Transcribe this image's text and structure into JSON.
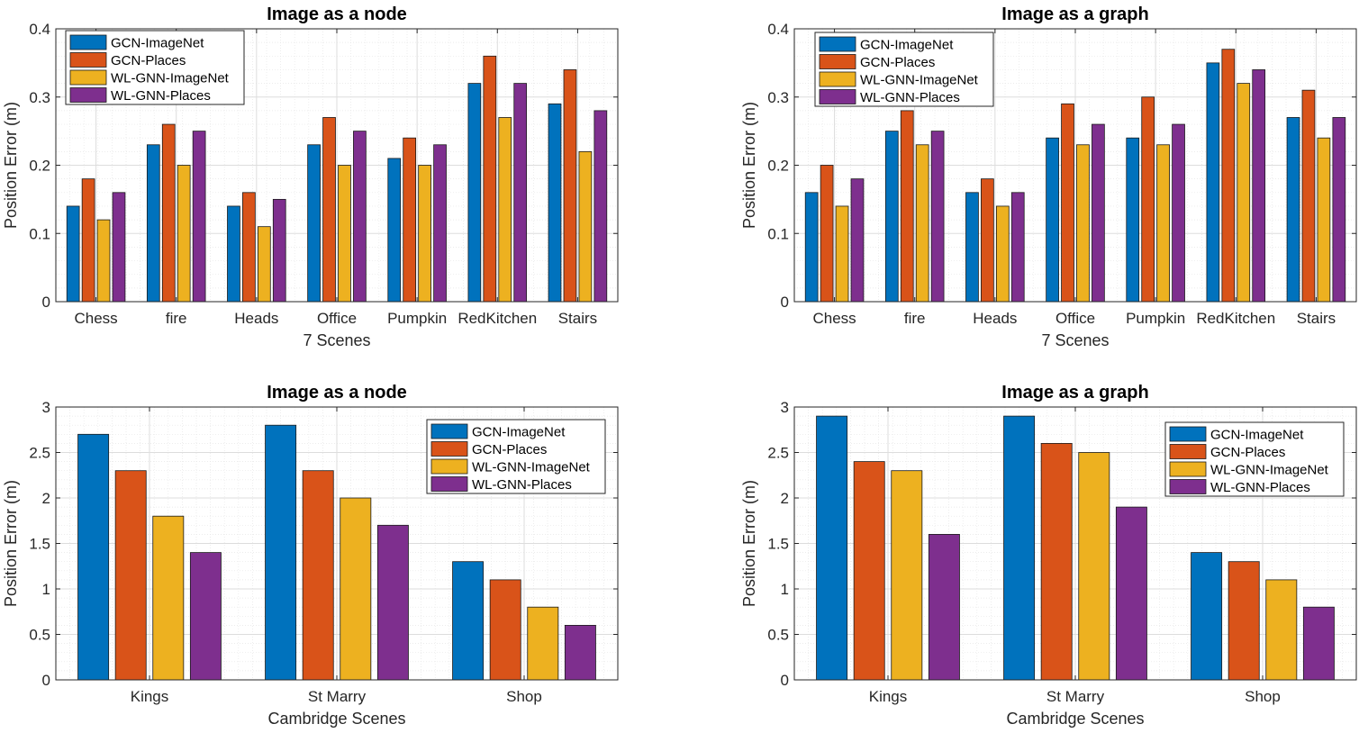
{
  "colors": {
    "series": [
      "#0072BD",
      "#D95319",
      "#EDB120",
      "#7E2F8E"
    ],
    "grid": "#dddddd",
    "axis": "#262626"
  },
  "chart_data": [
    {
      "type": "bar",
      "title": "Image as a node",
      "xlabel": "7 Scenes",
      "ylabel": "Position Error (m)",
      "ylim": [
        0,
        0.4
      ],
      "yticks": [
        "0",
        "0.1",
        "0.2",
        "0.3",
        "0.4"
      ],
      "grid": true,
      "legend_position": "top-left",
      "categories": [
        "Chess",
        "fire",
        "Heads",
        "Office",
        "Pumpkin",
        "RedKitchen",
        "Stairs"
      ],
      "series": [
        {
          "name": "GCN-ImageNet",
          "values": [
            0.14,
            0.23,
            0.14,
            0.23,
            0.21,
            0.32,
            0.29
          ]
        },
        {
          "name": "GCN-Places",
          "values": [
            0.18,
            0.26,
            0.16,
            0.27,
            0.24,
            0.36,
            0.34
          ]
        },
        {
          "name": "WL-GNN-ImageNet",
          "values": [
            0.12,
            0.2,
            0.11,
            0.2,
            0.2,
            0.27,
            0.22
          ]
        },
        {
          "name": "WL-GNN-Places",
          "values": [
            0.16,
            0.25,
            0.15,
            0.25,
            0.23,
            0.32,
            0.28
          ]
        }
      ]
    },
    {
      "type": "bar",
      "title": "Image as a graph",
      "xlabel": "7 Scenes",
      "ylabel": "Position Error (m)",
      "ylim": [
        0,
        0.4
      ],
      "yticks": [
        "0",
        "0.1",
        "0.2",
        "0.3",
        "0.4"
      ],
      "grid": true,
      "legend_position": "top-left",
      "categories": [
        "Chess",
        "fire",
        "Heads",
        "Office",
        "Pumpkin",
        "RedKitchen",
        "Stairs"
      ],
      "series": [
        {
          "name": "GCN-ImageNet",
          "values": [
            0.16,
            0.25,
            0.16,
            0.24,
            0.24,
            0.35,
            0.27
          ]
        },
        {
          "name": "GCN-Places",
          "values": [
            0.2,
            0.28,
            0.18,
            0.29,
            0.3,
            0.37,
            0.31
          ]
        },
        {
          "name": "WL-GNN-ImageNet",
          "values": [
            0.14,
            0.23,
            0.14,
            0.23,
            0.23,
            0.32,
            0.24
          ]
        },
        {
          "name": "WL-GNN-Places",
          "values": [
            0.18,
            0.25,
            0.16,
            0.26,
            0.26,
            0.34,
            0.27
          ]
        }
      ]
    },
    {
      "type": "bar",
      "title": "Image as a node",
      "xlabel": "Cambridge Scenes",
      "ylabel": "Position Error (m)",
      "ylim": [
        0,
        3
      ],
      "yticks": [
        "0",
        "0.5",
        "1",
        "1.5",
        "2",
        "2.5",
        "3"
      ],
      "grid": true,
      "legend_position": "top-right",
      "categories": [
        "Kings",
        "St Marry",
        "Shop"
      ],
      "series": [
        {
          "name": "GCN-ImageNet",
          "values": [
            2.7,
            2.8,
            1.3
          ]
        },
        {
          "name": "GCN-Places",
          "values": [
            2.3,
            2.3,
            1.1
          ]
        },
        {
          "name": "WL-GNN-ImageNet",
          "values": [
            1.8,
            2.0,
            0.8
          ]
        },
        {
          "name": "WL-GNN-Places",
          "values": [
            1.4,
            1.7,
            0.6
          ]
        }
      ]
    },
    {
      "type": "bar",
      "title": "Image as a graph",
      "xlabel": "Cambridge Scenes",
      "ylabel": "Position Error (m)",
      "ylim": [
        0,
        3
      ],
      "yticks": [
        "0",
        "0.5",
        "1",
        "1.5",
        "2",
        "2.5",
        "3"
      ],
      "grid": true,
      "legend_position": "top-right",
      "categories": [
        "Kings",
        "St Marry",
        "Shop"
      ],
      "series": [
        {
          "name": "GCN-ImageNet",
          "values": [
            2.9,
            2.9,
            1.4
          ]
        },
        {
          "name": "GCN-Places",
          "values": [
            2.4,
            2.6,
            1.3
          ]
        },
        {
          "name": "WL-GNN-ImageNet",
          "values": [
            2.3,
            2.5,
            1.1
          ]
        },
        {
          "name": "WL-GNN-Places",
          "values": [
            1.6,
            1.9,
            0.8
          ]
        }
      ]
    }
  ]
}
